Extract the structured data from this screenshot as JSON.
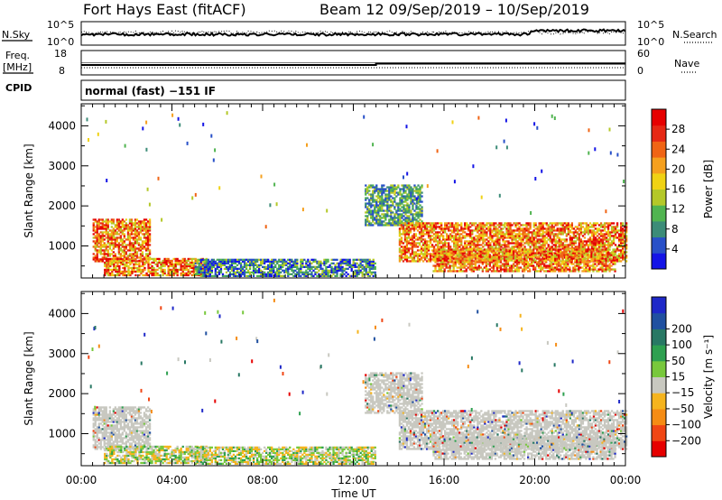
{
  "header": {
    "station": "Fort Hays East (fitACF)",
    "beam_date": "Beam 12  09/Sep/2019 – 10/Sep/2019"
  },
  "status_panels": {
    "nsky_label": "N.Sky",
    "nsky_ticks": [
      "10^5",
      "10^0"
    ],
    "nsearch_label": "N.Search",
    "nsearch_ticks": [
      "10^5",
      "10^0"
    ],
    "freq_label_1": "Freq.",
    "freq_label_2": "[MHz]",
    "freq_ticks": [
      "18",
      "8"
    ],
    "nave_label": "Nave",
    "nave_ticks": [
      "60",
      "0"
    ],
    "cpid_label": "CPID",
    "cpid_value": "normal (fast) −151 IF"
  },
  "chart_data": [
    {
      "type": "heatmap",
      "name": "power",
      "ylabel": "Slant Range [km]",
      "xlabel": "Time UT",
      "x_tick_labels": [
        "00:00",
        "04:00",
        "08:00",
        "12:00",
        "16:00",
        "20:00",
        "00:00"
      ],
      "x_ticks_hours": [
        0,
        4,
        8,
        12,
        16,
        20,
        24
      ],
      "ylim": [
        200,
        4550
      ],
      "y_ticks": [
        1000,
        2000,
        3000,
        4000
      ],
      "y_tick_labels": [
        "1000",
        "2000",
        "3000",
        "4000"
      ],
      "colorbar": {
        "label": "Power [dB]",
        "range": [
          0,
          32
        ],
        "tick_values": [
          4,
          8,
          12,
          16,
          20,
          24,
          28
        ],
        "tick_labels": [
          "4",
          "8",
          "12",
          "16",
          "20",
          "24",
          "28"
        ],
        "colors": [
          "#1414e6",
          "#2850c8",
          "#3c8c78",
          "#50b450",
          "#b4c828",
          "#f0d214",
          "#f5a01e",
          "#f06414",
          "#e62814",
          "#e60000"
        ]
      },
      "regions": [
        {
          "t": [
            0.5,
            3.0
          ],
          "r": [
            600,
            1650
          ],
          "level": "high"
        },
        {
          "t": [
            1.0,
            5.5
          ],
          "r": [
            250,
            700
          ],
          "level": "high"
        },
        {
          "t": [
            5.0,
            13.0
          ],
          "r": [
            230,
            650
          ],
          "level": "low"
        },
        {
          "t": [
            12.5,
            15.0
          ],
          "r": [
            1500,
            2500
          ],
          "level": "mid"
        },
        {
          "t": [
            14.0,
            24.0
          ],
          "r": [
            600,
            1550
          ],
          "level": "high"
        },
        {
          "t": [
            15.5,
            23.5
          ],
          "r": [
            350,
            900
          ],
          "level": "high"
        }
      ]
    },
    {
      "type": "heatmap",
      "name": "velocity",
      "ylabel": "Slant Range [km]",
      "xlabel": "Time UT",
      "x_tick_labels": [
        "00:00",
        "04:00",
        "08:00",
        "12:00",
        "16:00",
        "20:00",
        "00:00"
      ],
      "x_ticks_hours": [
        0,
        4,
        8,
        12,
        16,
        20,
        24
      ],
      "ylim": [
        200,
        4550
      ],
      "y_ticks": [
        1000,
        2000,
        3000,
        4000
      ],
      "y_tick_labels": [
        "1000",
        "2000",
        "3000",
        "4000"
      ],
      "colorbar": {
        "label": "Velocity [m s⁻¹]",
        "range": [
          -250,
          250
        ],
        "tick_values": [
          -200,
          -100,
          -50,
          -15,
          15,
          50,
          100,
          200
        ],
        "tick_labels": [
          "−200",
          "−100",
          "−50",
          "−15",
          "15",
          "50",
          "100",
          "200"
        ],
        "colors": [
          "#e60000",
          "#f04614",
          "#f58c14",
          "#f5b41e",
          "#c8c8c0",
          "#78c83c",
          "#2ea050",
          "#287864",
          "#2050a0",
          "#1e28c8"
        ]
      },
      "regions": [
        {
          "t": [
            0.5,
            3.0
          ],
          "r": [
            600,
            1650
          ],
          "level": "ground"
        },
        {
          "t": [
            1.0,
            5.5
          ],
          "r": [
            250,
            700
          ],
          "level": "mixed"
        },
        {
          "t": [
            5.0,
            13.0
          ],
          "r": [
            230,
            650
          ],
          "level": "mixed"
        },
        {
          "t": [
            12.5,
            15.0
          ],
          "r": [
            1500,
            2500
          ],
          "level": "ground"
        },
        {
          "t": [
            14.0,
            24.0
          ],
          "r": [
            600,
            1550
          ],
          "level": "ground"
        },
        {
          "t": [
            15.5,
            23.5
          ],
          "r": [
            350,
            900
          ],
          "level": "ground"
        }
      ]
    }
  ]
}
